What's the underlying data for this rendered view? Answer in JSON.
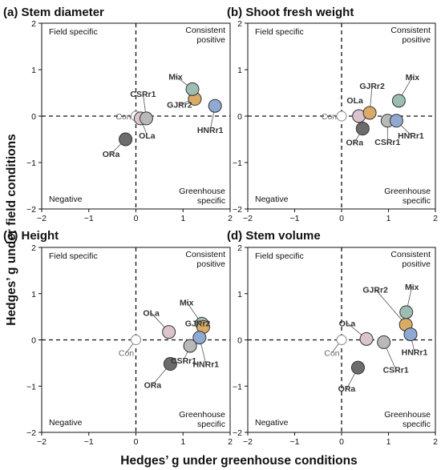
{
  "colors": {
    "Con": "#ffffff",
    "CSRr1": "#b9b9b9",
    "GJRr2": "#d9ab66",
    "HNRr1": "#8fa9d2",
    "Mix": "#9bbdb2",
    "OLa": "#dcc4cf",
    "ORa": "#6c6c6c"
  },
  "labels": {
    "xlabel": "Hedges’ g under greenhouse conditions",
    "ylabel": "Hedges’ g under field conditions"
  },
  "chart_data": [
    {
      "type": "scatter",
      "panel": "(a)",
      "title": "(a) Stem diameter",
      "xlim": [
        -2,
        2
      ],
      "ylim": [
        -2,
        2
      ],
      "xticks": [
        "−2",
        "−1",
        "0",
        "1",
        "2"
      ],
      "yticks": [
        "2",
        "1",
        "0",
        "−1",
        "−2"
      ],
      "quadrants": {
        "top_left": "Field specific",
        "top_right": [
          "Consistent",
          "positive"
        ],
        "bottom_left": "Negative",
        "bottom_right": [
          "Greenhouse",
          "specific"
        ]
      },
      "points": [
        {
          "name": "Con",
          "x": 0.0,
          "y": 0.0
        },
        {
          "name": "OLa",
          "x": 0.1,
          "y": -0.05
        },
        {
          "name": "CSRr1",
          "x": 0.22,
          "y": -0.05
        },
        {
          "name": "GJRr2",
          "x": 1.25,
          "y": 0.37
        },
        {
          "name": "Mix",
          "x": 1.2,
          "y": 0.58
        },
        {
          "name": "HNRr1",
          "x": 1.68,
          "y": 0.22
        },
        {
          "name": "ORa",
          "x": -0.22,
          "y": -0.5
        }
      ]
    },
    {
      "type": "scatter",
      "panel": "(b)",
      "title": "(b) Shoot fresh weight",
      "xlim": [
        -2,
        2
      ],
      "ylim": [
        -2,
        2
      ],
      "xticks": [
        "−2",
        "−1",
        "0",
        "1",
        "2"
      ],
      "yticks": [
        "2",
        "1",
        "0",
        "−1",
        "−2"
      ],
      "quadrants": {
        "top_left": "Field specific",
        "top_right": [
          "Consistent",
          "positive"
        ],
        "bottom_left": "Negative",
        "bottom_right": [
          "Greenhouse",
          "specific"
        ]
      },
      "points": [
        {
          "name": "Con",
          "x": 0.0,
          "y": 0.0
        },
        {
          "name": "OLa",
          "x": 0.37,
          "y": 0.0
        },
        {
          "name": "GJRr2",
          "x": 0.6,
          "y": 0.07
        },
        {
          "name": "ORa",
          "x": 0.45,
          "y": -0.27
        },
        {
          "name": "CSRr1",
          "x": 0.98,
          "y": -0.1
        },
        {
          "name": "HNRr1",
          "x": 1.17,
          "y": -0.1
        },
        {
          "name": "Mix",
          "x": 1.22,
          "y": 0.33
        }
      ]
    },
    {
      "type": "scatter",
      "panel": "(c)",
      "title": "(c) Height",
      "xlim": [
        -2,
        2
      ],
      "ylim": [
        -2,
        2
      ],
      "xticks": [
        "−2",
        "−1",
        "0",
        "1",
        "2"
      ],
      "yticks": [
        "2",
        "1",
        "0",
        "−1",
        "−2"
      ],
      "quadrants": {
        "top_left": "Field specific",
        "top_right": [
          "Consistent",
          "positive"
        ],
        "bottom_left": "Negative",
        "bottom_right": [
          "Greenhouse",
          "specific"
        ]
      },
      "points": [
        {
          "name": "Con",
          "x": 0.0,
          "y": 0.0
        },
        {
          "name": "OLa",
          "x": 0.7,
          "y": 0.17
        },
        {
          "name": "Mix",
          "x": 1.4,
          "y": 0.35
        },
        {
          "name": "GJRr2",
          "x": 1.43,
          "y": 0.28
        },
        {
          "name": "HNRr1",
          "x": 1.35,
          "y": 0.05
        },
        {
          "name": "CSRr1",
          "x": 1.15,
          "y": -0.13
        },
        {
          "name": "ORa",
          "x": 0.73,
          "y": -0.52
        }
      ]
    },
    {
      "type": "scatter",
      "panel": "(d)",
      "title": "(d) Stem volume",
      "xlim": [
        -2,
        2
      ],
      "ylim": [
        -2,
        2
      ],
      "xticks": [
        "−2",
        "−1",
        "0",
        "1",
        "2"
      ],
      "yticks": [
        "2",
        "1",
        "0",
        "−1",
        "−2"
      ],
      "quadrants": {
        "top_left": "Field specific",
        "top_right": [
          "Consistent",
          "positive"
        ],
        "bottom_left": "Negative",
        "bottom_right": [
          "Greenhouse",
          "specific"
        ]
      },
      "points": [
        {
          "name": "Con",
          "x": 0.0,
          "y": 0.0
        },
        {
          "name": "OLa",
          "x": 0.53,
          "y": 0.02
        },
        {
          "name": "CSRr1",
          "x": 0.9,
          "y": -0.05
        },
        {
          "name": "GJRr2",
          "x": 1.37,
          "y": 0.33
        },
        {
          "name": "Mix",
          "x": 1.38,
          "y": 0.6
        },
        {
          "name": "HNRr1",
          "x": 1.47,
          "y": 0.12
        },
        {
          "name": "ORa",
          "x": 0.35,
          "y": -0.6
        }
      ]
    }
  ]
}
